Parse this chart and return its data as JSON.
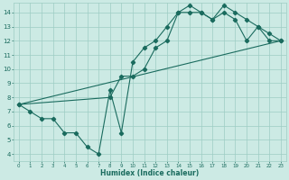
{
  "xlabel": "Humidex (Indice chaleur)",
  "bg_color": "#cceae4",
  "grid_color": "#9ecdc4",
  "line_color": "#1a6b5e",
  "xlim": [
    -0.5,
    23.5
  ],
  "ylim": [
    3.5,
    14.7
  ],
  "xticks": [
    0,
    1,
    2,
    3,
    4,
    5,
    6,
    7,
    8,
    9,
    10,
    11,
    12,
    13,
    14,
    15,
    16,
    17,
    18,
    19,
    20,
    21,
    22,
    23
  ],
  "yticks": [
    4,
    5,
    6,
    7,
    8,
    9,
    10,
    11,
    12,
    13,
    14
  ],
  "line1_x": [
    0,
    1,
    2,
    3,
    4,
    5,
    6,
    7,
    8,
    9,
    10,
    11,
    12,
    13,
    14,
    15,
    16,
    17,
    18,
    19,
    20,
    21,
    22,
    23
  ],
  "line1_y": [
    7.5,
    7.0,
    6.5,
    6.5,
    5.5,
    5.5,
    4.5,
    4.0,
    8.5,
    5.5,
    10.5,
    11.5,
    12.0,
    13.0,
    14.0,
    14.0,
    14.0,
    13.5,
    14.5,
    14.0,
    13.5,
    13.0,
    12.5,
    12.0
  ],
  "line2_x": [
    0,
    8,
    9,
    10,
    11,
    12,
    13,
    14,
    15,
    16,
    17,
    18,
    19,
    20,
    21,
    22,
    23
  ],
  "line2_y": [
    7.5,
    8.0,
    9.5,
    9.5,
    10.0,
    11.5,
    12.0,
    14.0,
    14.5,
    14.0,
    13.5,
    14.0,
    13.5,
    12.0,
    13.0,
    12.0,
    12.0
  ],
  "line3_x": [
    0,
    23
  ],
  "line3_y": [
    7.5,
    12.0
  ]
}
